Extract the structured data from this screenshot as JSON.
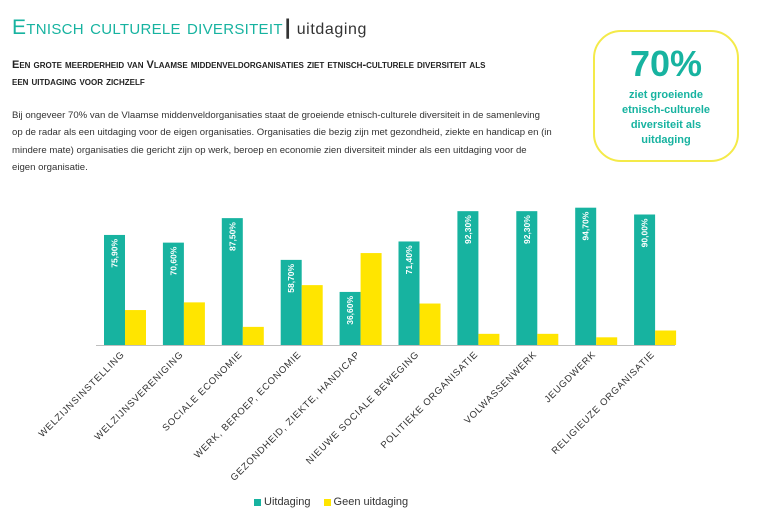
{
  "header": {
    "title": "Etnisch culturele diversiteit",
    "separator": "|",
    "section": "uitdaging"
  },
  "subtitle": "Een grote meerderheid van Vlaamse middenveldorganisaties ziet etnisch-culturele diversiteit als een uitdaging voor zichzelf",
  "body": "Bij ongeveer 70% van de Vlaamse middenveldorganisaties staat de groeiende etnisch-culturele diversiteit in de samenleving op de radar als een uitdaging voor de eigen organisaties. Organisaties die bezig zijn met gezondheid, ziekte en handicap en (in mindere mate) organisaties die gericht zijn op werk, beroep en economie zien diversiteit minder als een uitdaging voor de eigen organisatie.",
  "highlight": {
    "value": "70%",
    "label": "ziet groeiende etnisch-culturele diversiteit als uitdaging"
  },
  "colors": {
    "teal": "#17b3a0",
    "yellow": "#ffe500",
    "border": "#f4ea49"
  },
  "chart_data": {
    "type": "bar",
    "categories": [
      "WELZIJNSINSTELLING",
      "WELZIJNSVERENIGING",
      "SOCIALE ECONOMIE",
      "WERK, BEROEP, ECONOMIE",
      "GEZONDHEID, ZIEKTE, HANDICAP",
      "NIEUWE SOCIALE BEWEGING",
      "POLITIEKE ORGANISATIE",
      "VOLWASSENWERK",
      "JEUGDWERK",
      "RELIGIEUZE ORGANISATIE"
    ],
    "series": [
      {
        "name": "Uitdaging",
        "values": [
          75.9,
          70.6,
          87.5,
          58.7,
          36.6,
          71.4,
          92.3,
          92.3,
          94.7,
          90.0
        ],
        "labels": [
          "75,90%",
          "70,60%",
          "87,50%",
          "58,70%",
          "36,60%",
          "71,40%",
          "92,30%",
          "92,30%",
          "94,70%",
          "90,00%"
        ]
      },
      {
        "name": "Geen uitdaging",
        "values": [
          24.1,
          29.4,
          12.5,
          41.3,
          63.4,
          28.6,
          7.7,
          7.7,
          5.3,
          10.0
        ]
      }
    ],
    "ylim": [
      0,
      100
    ],
    "grid": false,
    "legend": "bottom-center"
  }
}
